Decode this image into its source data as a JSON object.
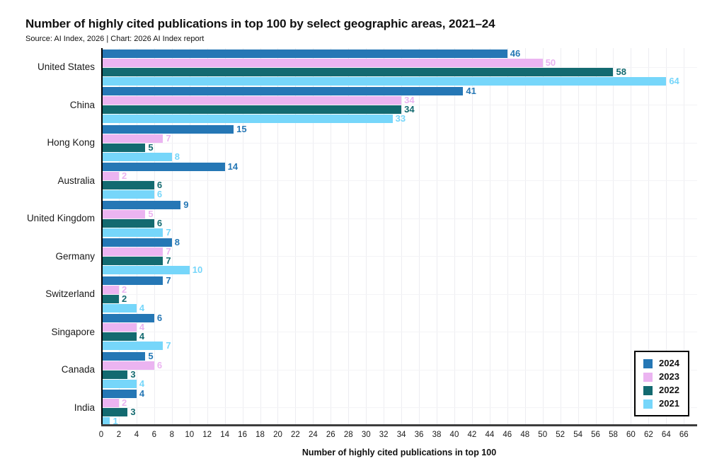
{
  "header": {
    "title": "Number of highly cited publications in top 100 by select geographic areas, 2021–24",
    "source": "Source: AI Index, 2026 | Chart: 2026 AI Index report"
  },
  "chart_data": {
    "type": "bar",
    "orientation": "horizontal",
    "title": "Number of highly cited publications in top 100 by select geographic areas, 2021–24",
    "subtitle": "Source: AI Index, 2026 | Chart: 2026 AI Index report",
    "categories": [
      "United States",
      "China",
      "Hong Kong",
      "Australia",
      "United Kingdom",
      "Germany",
      "Switzerland",
      "Singapore",
      "Canada",
      "India"
    ],
    "series": [
      {
        "name": "2024",
        "color": "#2577b5",
        "values": [
          46,
          41,
          15,
          14,
          9,
          8,
          7,
          6,
          5,
          4
        ]
      },
      {
        "name": "2023",
        "color": "#ebb4f1",
        "values": [
          50,
          34,
          7,
          2,
          5,
          7,
          2,
          4,
          6,
          2
        ]
      },
      {
        "name": "2022",
        "color": "#136a70",
        "values": [
          58,
          34,
          5,
          6,
          6,
          7,
          2,
          4,
          3,
          3
        ]
      },
      {
        "name": "2021",
        "color": "#76d6fa",
        "values": [
          64,
          33,
          8,
          6,
          7,
          10,
          4,
          7,
          4,
          1
        ]
      }
    ],
    "xlabel": "Number of highly cited publications in top 100",
    "ylabel": "",
    "xlim": [
      0,
      67.5
    ],
    "xticks": [
      0,
      2,
      4,
      6,
      8,
      10,
      12,
      14,
      16,
      18,
      20,
      22,
      24,
      26,
      28,
      30,
      32,
      34,
      36,
      38,
      40,
      42,
      44,
      46,
      48,
      50,
      52,
      54,
      56,
      58,
      60,
      62,
      64,
      66
    ],
    "grid": true,
    "legend_position": "bottom-right",
    "value_labels": true
  }
}
